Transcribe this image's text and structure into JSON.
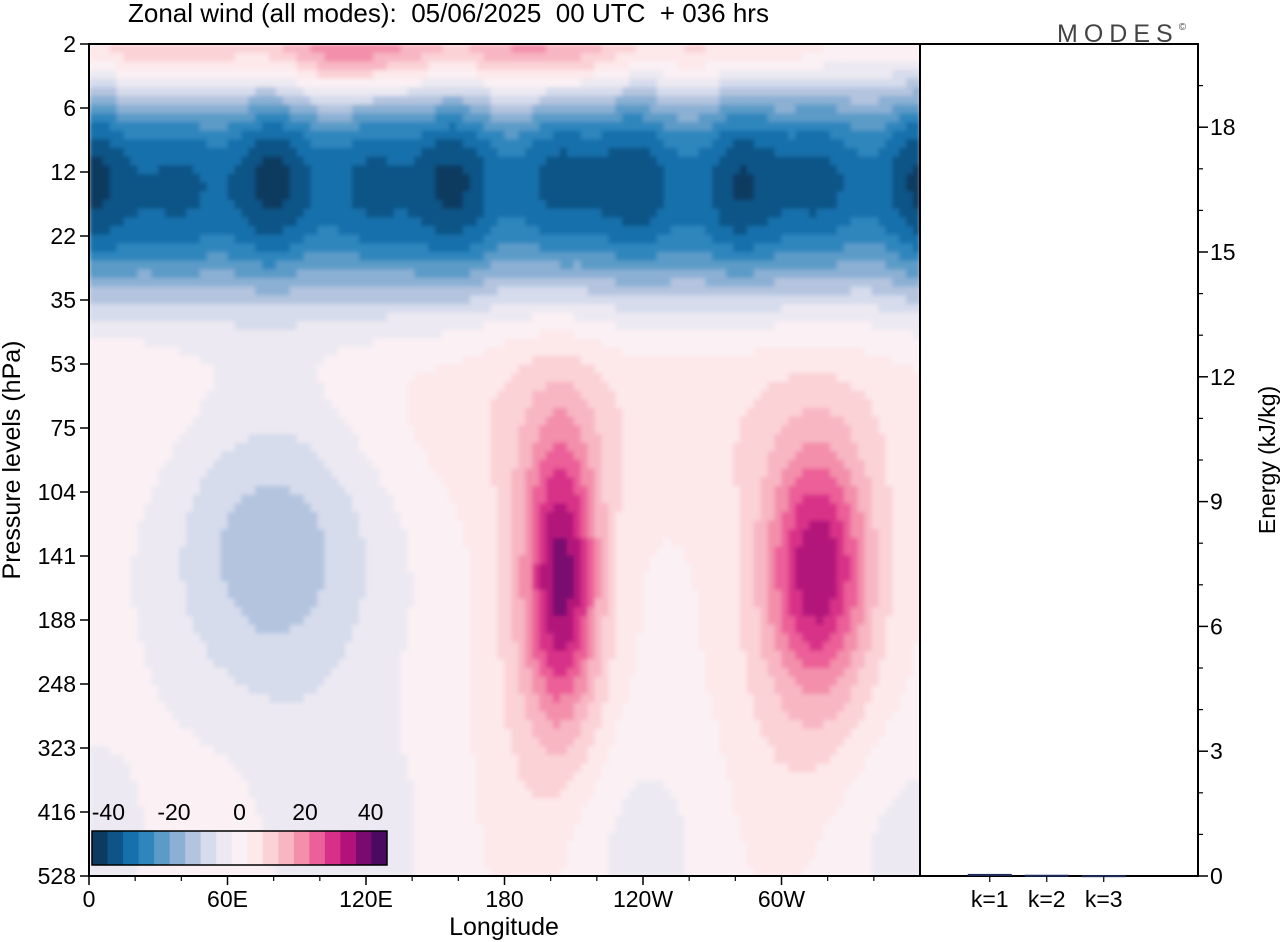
{
  "title": "Zonal wind (all modes):  05/06/2025  00 UTC  + 036 hrs",
  "brand": "MODES",
  "brand_mark": "©",
  "chart_data": [
    {
      "type": "heatmap",
      "title": "Zonal wind (all modes):  05/06/2025  00 UTC  + 036 hrs",
      "xlabel": "Longitude",
      "ylabel": "Pressure levels (hPa)",
      "x_ticks": [
        "0",
        "60E",
        "120E",
        "180",
        "120W",
        "60W"
      ],
      "x_tick_degrees": [
        0,
        60,
        120,
        180,
        240,
        300
      ],
      "xlim": [
        0,
        360
      ],
      "y_levels": [
        "2",
        "6",
        "12",
        "22",
        "35",
        "53",
        "75",
        "104",
        "141",
        "188",
        "248",
        "323",
        "416",
        "528"
      ],
      "y_scale": "pressure levels (top 2 hPa, bottom 528 hPa)",
      "colorbar": {
        "labels": [
          "-40",
          "-20",
          "0",
          "20",
          "40"
        ],
        "label_values": [
          -40,
          -20,
          0,
          20,
          40
        ],
        "bins": [
          -45,
          -40,
          -35,
          -30,
          -25,
          -20,
          -15,
          -10,
          -5,
          0,
          5,
          10,
          15,
          20,
          25,
          30,
          35,
          40,
          45
        ],
        "colors": [
          "#0b3b61",
          "#0f5487",
          "#1570ab",
          "#2f86bd",
          "#5b9bc8",
          "#8bb0d4",
          "#b4c4df",
          "#d6dcec",
          "#ece9f2",
          "#fbf1f4",
          "#fde8ea",
          "#fbd2d6",
          "#f8b6c3",
          "#f38fab",
          "#ec5f98",
          "#d83088",
          "#b3127a",
          "#7a0a70",
          "#4b0a62"
        ],
        "placement": "bottom-left"
      },
      "regions": [
        {
          "label": "upper easterly jet",
          "level_range": [
            "6",
            "35"
          ],
          "lon_range": [
            0,
            360
          ],
          "min_value": -40
        },
        {
          "label": "stratopause westerlies",
          "level_range": [
            "2",
            "6"
          ],
          "lon_range": [
            40,
            300
          ],
          "max_value": 25
        },
        {
          "label": "easterlies over Indian Ocean sector",
          "level_range": [
            "75",
            "323"
          ],
          "lon_range": [
            20,
            140
          ],
          "min_value": -15
        },
        {
          "label": "westerly maximum near 160W",
          "level_range": [
            "75",
            "323"
          ],
          "lon_range": [
            185,
            225
          ],
          "max_value": 30
        },
        {
          "label": "westerly maximum near 55W",
          "level_range": [
            "75",
            "323"
          ],
          "lon_range": [
            270,
            330
          ],
          "max_value": 30
        }
      ],
      "grid": false
    },
    {
      "type": "bar",
      "categories": [
        "k=1",
        "k=2",
        "k=3"
      ],
      "values": [
        0.05,
        0.03,
        0.02
      ],
      "ylabel": "Energy (kJ/kg)",
      "y_ticks": [
        "0",
        "3",
        "6",
        "9",
        "12",
        "15",
        "18"
      ],
      "ylim": [
        0,
        20
      ],
      "axis_side": "right"
    }
  ]
}
